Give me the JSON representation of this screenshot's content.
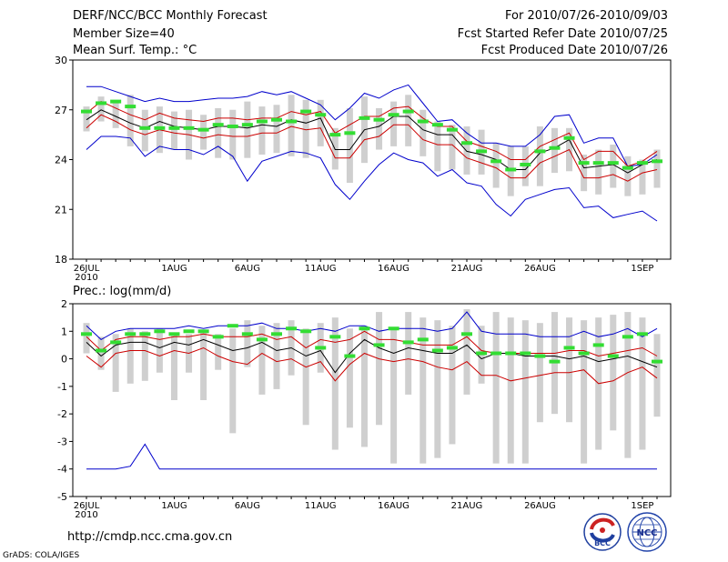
{
  "header": {
    "title": "DERF/NCC/BCC Monthly Forecast",
    "member_size": "Member Size=40",
    "variable": "Mean Surf. Temp.: °C",
    "period": "For 2010/07/26-2010/09/03",
    "fcst_started": "Fcst Started Refer Date 2010/07/25",
    "fcst_produced": "Fcst Produced Date 2010/07/26"
  },
  "footer": {
    "url": "http://cmdp.ncc.cma.gov.cn",
    "credit": "GrADS: COLA/IGES"
  },
  "logos": {
    "bcc": "BCC",
    "ncc": "NCC"
  },
  "colors": {
    "max_min": "#0000cc",
    "spread": "#cc0000",
    "mean": "#000000",
    "box": "#cfcfcf",
    "marker": "#33dd33"
  },
  "chart_data": [
    {
      "type": "line",
      "title": "Mean Surf. Temp.: °C",
      "xlabel": "",
      "ylabel": "°C",
      "ylim": [
        18,
        30
      ],
      "yticks": [
        18,
        21,
        24,
        27,
        30
      ],
      "xticks": [
        "26JUL\n2010",
        "1AUG",
        "6AUG",
        "11AUG",
        "16AUG",
        "21AUG",
        "26AUG",
        "1SEP"
      ],
      "x_days": 40,
      "series": [
        {
          "name": "max",
          "values": [
            28.4,
            28.4,
            28.1,
            27.8,
            27.5,
            27.7,
            27.5,
            27.5,
            27.6,
            27.7,
            27.7,
            27.8,
            28.1,
            27.9,
            28.1,
            27.7,
            27.3,
            26.4,
            27.1,
            28.0,
            27.7,
            28.2,
            28.5,
            27.4,
            26.3,
            26.4,
            25.6,
            25.0,
            25.0,
            24.8,
            24.8,
            25.5,
            26.6,
            26.7,
            25.0,
            25.3,
            25.3,
            23.6,
            23.7,
            24.3
          ]
        },
        {
          "name": "upper",
          "values": [
            26.8,
            27.5,
            27.1,
            26.7,
            26.4,
            26.8,
            26.5,
            26.4,
            26.3,
            26.5,
            26.5,
            26.4,
            26.5,
            26.5,
            26.9,
            26.7,
            26.9,
            25.6,
            26.1,
            26.6,
            26.6,
            27.1,
            27.2,
            26.5,
            26.0,
            26.0,
            25.1,
            24.8,
            24.5,
            24.0,
            24.0,
            24.8,
            25.2,
            25.6,
            24.0,
            24.5,
            24.5,
            23.6,
            23.9,
            24.5
          ]
        },
        {
          "name": "mean",
          "values": [
            26.4,
            27.0,
            26.6,
            26.2,
            25.9,
            26.3,
            26.0,
            25.9,
            25.8,
            26.0,
            26.0,
            25.9,
            26.1,
            26.0,
            26.4,
            26.2,
            26.5,
            24.6,
            24.6,
            25.8,
            26.0,
            26.6,
            26.6,
            25.8,
            25.5,
            25.5,
            24.5,
            24.3,
            24.0,
            23.4,
            23.4,
            24.4,
            24.7,
            25.2,
            23.5,
            23.6,
            23.7,
            23.2,
            23.7,
            24.0
          ]
        },
        {
          "name": "lower",
          "values": [
            25.9,
            26.7,
            26.3,
            25.8,
            25.5,
            25.8,
            25.6,
            25.5,
            25.3,
            25.5,
            25.4,
            25.4,
            25.6,
            25.6,
            26.0,
            25.8,
            25.9,
            24.1,
            24.1,
            25.2,
            25.4,
            26.1,
            26.1,
            25.2,
            24.9,
            24.9,
            24.1,
            23.8,
            23.5,
            22.9,
            22.9,
            23.8,
            24.2,
            24.6,
            22.9,
            22.9,
            23.1,
            22.7,
            23.2,
            23.4
          ]
        },
        {
          "name": "min",
          "values": [
            24.6,
            25.4,
            25.4,
            25.3,
            24.2,
            24.8,
            24.6,
            24.6,
            24.3,
            24.8,
            24.2,
            22.7,
            23.9,
            24.2,
            24.5,
            24.4,
            24.1,
            22.5,
            21.6,
            22.7,
            23.7,
            24.4,
            24.0,
            23.8,
            23.0,
            23.4,
            22.6,
            22.4,
            21.3,
            20.6,
            21.6,
            21.9,
            22.2,
            22.3,
            21.1,
            21.2,
            20.5,
            20.7,
            20.9,
            20.3
          ]
        },
        {
          "name": "ens_box_top",
          "values": [
            27.2,
            27.8,
            27.6,
            27.9,
            27.0,
            27.2,
            26.9,
            27.0,
            26.7,
            27.1,
            27.0,
            27.5,
            27.2,
            27.3,
            27.9,
            27.6,
            27.6,
            25.9,
            27.1,
            27.8,
            27.1,
            27.5,
            27.9,
            27.0,
            26.3,
            26.1,
            26.0,
            25.8,
            25.0,
            24.8,
            24.8,
            26.0,
            25.9,
            25.9,
            24.3,
            24.6,
            24.9,
            24.2,
            24.0,
            24.6
          ]
        },
        {
          "name": "ens_box_bottom",
          "values": [
            25.7,
            26.3,
            25.9,
            24.8,
            24.5,
            24.4,
            24.6,
            24.0,
            24.6,
            24.1,
            24.0,
            24.1,
            24.3,
            24.4,
            24.2,
            24.1,
            24.8,
            23.4,
            22.6,
            23.8,
            24.6,
            24.8,
            24.8,
            24.2,
            23.3,
            23.4,
            23.1,
            23.1,
            22.3,
            21.8,
            22.4,
            22.4,
            23.2,
            23.3,
            22.1,
            21.9,
            22.3,
            21.8,
            21.9,
            22.3
          ]
        },
        {
          "name": "marker",
          "values": [
            26.9,
            27.4,
            27.5,
            27.2,
            25.9,
            25.9,
            25.9,
            25.9,
            25.8,
            26.1,
            26.0,
            26.1,
            26.3,
            26.4,
            26.3,
            26.9,
            26.7,
            25.5,
            25.6,
            26.5,
            26.4,
            26.7,
            26.9,
            26.3,
            26.1,
            25.8,
            25.0,
            24.5,
            23.9,
            23.4,
            23.7,
            24.5,
            24.7,
            25.3,
            23.8,
            23.8,
            23.8,
            23.5,
            23.8,
            23.9
          ]
        }
      ]
    },
    {
      "type": "line",
      "title": "Prec.: log(mm/d)",
      "xlabel": "",
      "ylabel": "log(mm/d)",
      "ylim": [
        -5,
        2
      ],
      "yticks": [
        -5,
        -4,
        -3,
        -2,
        -1,
        0,
        1,
        2
      ],
      "xticks": [
        "26JUL\n2010",
        "1AUG",
        "6AUG",
        "11AUG",
        "16AUG",
        "21AUG",
        "26AUG",
        "1SEP"
      ],
      "x_days": 40,
      "series": [
        {
          "name": "max",
          "values": [
            1.2,
            0.7,
            1.0,
            1.1,
            1.1,
            1.1,
            1.1,
            1.2,
            1.1,
            1.2,
            1.2,
            1.2,
            1.3,
            1.1,
            1.1,
            1.0,
            1.1,
            1.0,
            1.2,
            1.2,
            1.0,
            1.1,
            1.1,
            1.1,
            1.0,
            1.1,
            1.7,
            1.0,
            0.9,
            0.9,
            0.9,
            0.8,
            0.8,
            0.8,
            1.0,
            0.8,
            0.9,
            1.1,
            0.8,
            1.1
          ]
        },
        {
          "name": "upper",
          "values": [
            0.8,
            0.3,
            0.7,
            0.8,
            0.8,
            0.7,
            0.8,
            0.8,
            0.9,
            0.8,
            0.8,
            0.8,
            0.9,
            0.7,
            0.8,
            0.4,
            0.7,
            0.6,
            0.7,
            1.0,
            0.7,
            0.7,
            0.6,
            0.5,
            0.5,
            0.5,
            0.8,
            0.3,
            0.2,
            0.2,
            0.2,
            0.2,
            0.2,
            0.3,
            0.3,
            0.1,
            0.2,
            0.3,
            0.4,
            0.1
          ]
        },
        {
          "name": "mean",
          "values": [
            0.6,
            0.1,
            0.5,
            0.6,
            0.6,
            0.4,
            0.6,
            0.5,
            0.7,
            0.5,
            0.3,
            0.4,
            0.6,
            0.3,
            0.4,
            0.1,
            0.3,
            -0.5,
            0.2,
            0.7,
            0.4,
            0.2,
            0.4,
            0.3,
            0.2,
            0.2,
            0.5,
            0.0,
            0.2,
            0.2,
            0.1,
            0.1,
            0.1,
            0.0,
            0.1,
            -0.1,
            0.0,
            0.1,
            -0.1,
            -0.3
          ]
        },
        {
          "name": "lower",
          "values": [
            0.1,
            -0.3,
            0.2,
            0.3,
            0.3,
            0.1,
            0.3,
            0.2,
            0.4,
            0.1,
            -0.1,
            -0.2,
            0.2,
            -0.1,
            0.0,
            -0.3,
            -0.1,
            -0.8,
            -0.2,
            0.2,
            0.0,
            -0.1,
            0.0,
            -0.1,
            -0.3,
            -0.4,
            -0.1,
            -0.6,
            -0.6,
            -0.8,
            -0.7,
            -0.6,
            -0.5,
            -0.5,
            -0.4,
            -0.9,
            -0.8,
            -0.5,
            -0.3,
            -0.7
          ]
        },
        {
          "name": "min",
          "values": [
            -4.0,
            -4.0,
            -4.0,
            -3.9,
            -3.1,
            -4.0,
            -4.0,
            -4.0,
            -4.0,
            -4.0,
            -4.0,
            -4.0,
            -4.0,
            -4.0,
            -4.0,
            -4.0,
            -4.0,
            -4.0,
            -4.0,
            -4.0,
            -4.0,
            -4.0,
            -4.0,
            -4.0,
            -4.0,
            -4.0,
            -4.0,
            -4.0,
            -4.0,
            -4.0,
            -4.0,
            -4.0,
            -4.0,
            -4.0,
            -4.0,
            -4.0,
            -4.0,
            -4.0,
            -4.0,
            -4.0
          ]
        },
        {
          "name": "ens_box_top",
          "values": [
            1.3,
            0.8,
            0.9,
            1.1,
            1.0,
            1.1,
            0.9,
            0.9,
            1.0,
            0.9,
            1.1,
            1.4,
            1.2,
            1.3,
            1.4,
            1.1,
            1.3,
            1.5,
            1.1,
            1.2,
            1.7,
            1.1,
            1.7,
            1.5,
            1.4,
            1.2,
            1.8,
            1.2,
            1.7,
            1.5,
            1.4,
            1.3,
            1.7,
            1.5,
            1.4,
            1.5,
            1.6,
            1.7,
            1.5,
            0.9
          ]
        },
        {
          "name": "ens_box_bottom",
          "values": [
            0.2,
            -0.4,
            -1.2,
            -0.9,
            -0.8,
            -0.5,
            -1.5,
            -0.5,
            -1.5,
            -0.4,
            -2.7,
            -0.3,
            -1.3,
            -1.1,
            -0.6,
            -2.4,
            -0.5,
            -3.3,
            -2.5,
            -3.2,
            -2.4,
            -3.8,
            -1.3,
            -3.8,
            -3.6,
            -3.1,
            -1.3,
            -0.9,
            -3.8,
            -3.8,
            -3.8,
            -2.3,
            -2.0,
            -2.3,
            -3.8,
            -3.3,
            -2.6,
            -3.6,
            -3.3,
            -2.1
          ]
        },
        {
          "name": "marker",
          "values": [
            0.9,
            0.3,
            0.6,
            0.9,
            0.9,
            1.0,
            0.9,
            1.0,
            1.0,
            0.8,
            1.2,
            0.9,
            0.7,
            0.9,
            1.1,
            1.0,
            0.4,
            0.8,
            0.1,
            1.1,
            0.5,
            1.1,
            0.6,
            0.7,
            0.3,
            0.4,
            0.9,
            0.2,
            0.2,
            0.2,
            0.2,
            0.1,
            -0.1,
            0.4,
            0.2,
            0.5,
            0.1,
            0.8,
            0.9,
            -0.1
          ]
        }
      ]
    }
  ]
}
